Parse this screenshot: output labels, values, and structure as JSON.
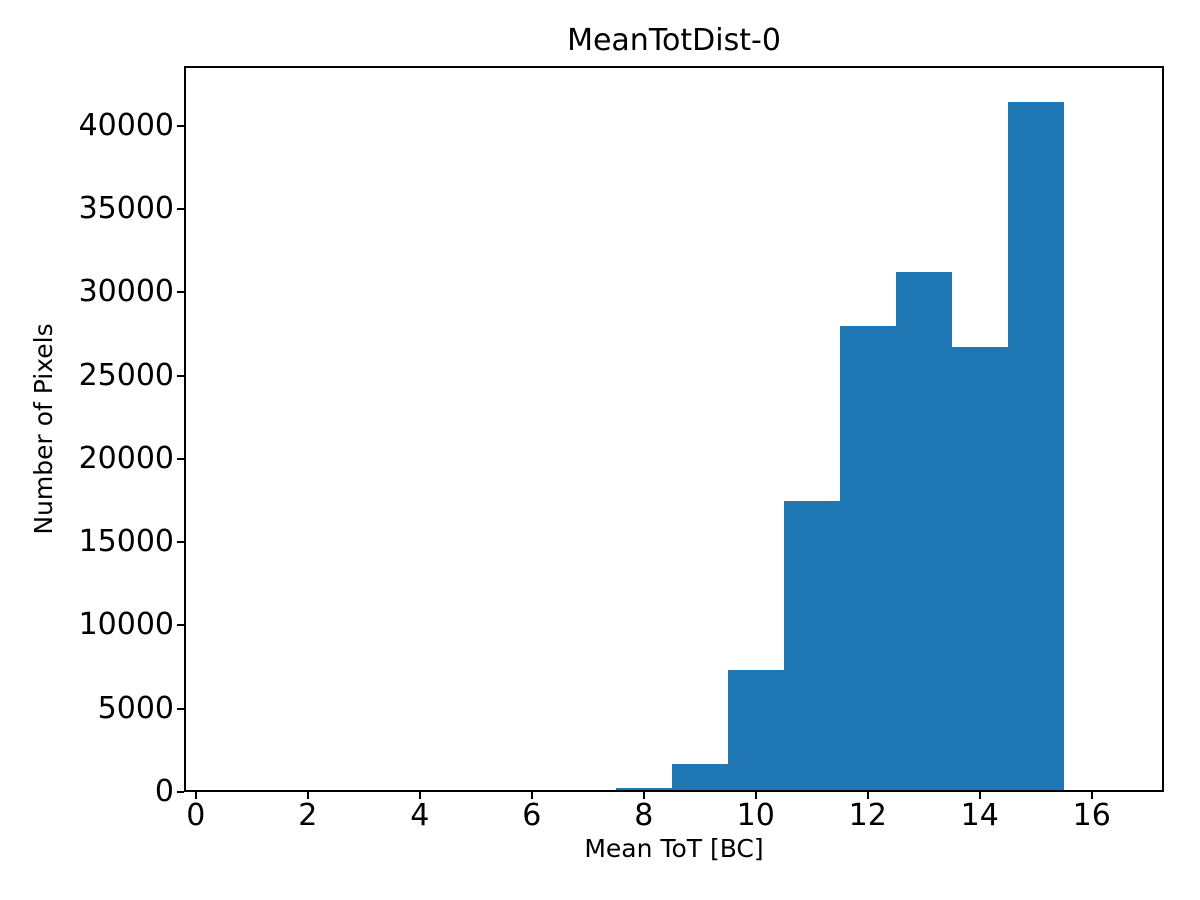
{
  "chart_data": {
    "type": "bar",
    "subtype": "histogram",
    "title": "MeanTotDist-0",
    "xlabel": "Mean ToT [BC]",
    "ylabel": "Number of Pixels",
    "bar_color": "#1f77b4",
    "axis_color": "#000000",
    "background_color": "#ffffff",
    "bin_edges": [
      7.5,
      8.5,
      9.5,
      10.5,
      11.5,
      12.5,
      13.5,
      14.5,
      15.5
    ],
    "counts": [
      250,
      1700,
      7300,
      17450,
      28000,
      31250,
      26700,
      41450
    ],
    "xticks": [
      0,
      2,
      4,
      6,
      8,
      10,
      12,
      14,
      16
    ],
    "yticks": [
      0,
      5000,
      10000,
      15000,
      20000,
      25000,
      30000,
      35000,
      40000
    ],
    "xlim": [
      -0.21,
      17.29
    ],
    "ylim": [
      0,
      43600
    ],
    "grid": false,
    "legend": null
  }
}
